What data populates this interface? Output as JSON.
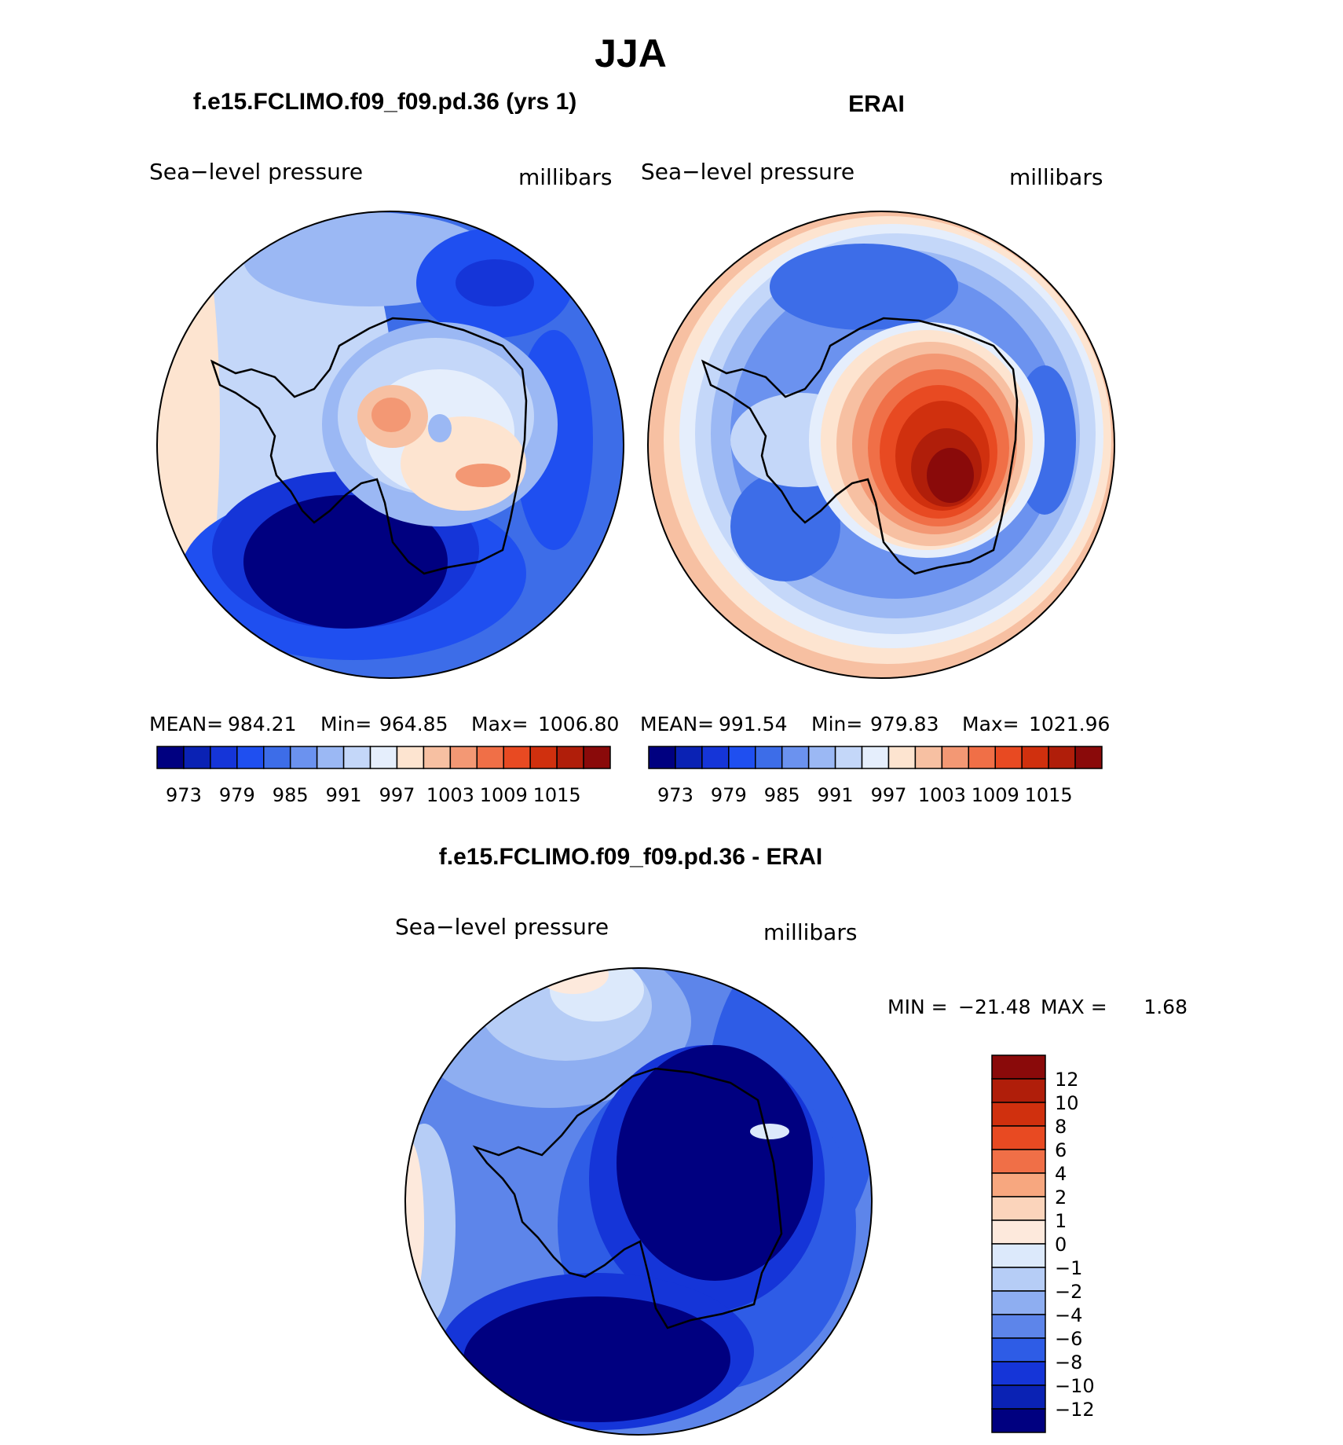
{
  "page": {
    "title": "JJA",
    "subtitle_left": "f.e15.FCLIMO.f09_f09.pd.36 (yrs 1)",
    "subtitle_right": "ERAI",
    "subtitle_diff": "f.e15.FCLIMO.f09_f09.pd.36 - ERAI"
  },
  "chart_data": [
    {
      "type": "heatmap",
      "projection": "south polar stereographic",
      "title": "f.e15.FCLIMO.f09_f09.pd.36 (yrs 1)",
      "variable_label": "Sea−level pressure",
      "units_label": "millibars",
      "stats": {
        "mean_label": "MEAN=",
        "mean": "984.21",
        "min_label": "Min=",
        "min": "964.85",
        "max_label": "Max=",
        "max": "1006.80"
      },
      "colorbar": {
        "orientation": "horizontal",
        "levels": [
          970,
          973,
          976,
          979,
          982,
          985,
          988,
          991,
          994,
          997,
          1000,
          1003,
          1006,
          1009,
          1012,
          1015,
          1018
        ],
        "tick_labels": [
          "973",
          "979",
          "985",
          "991",
          "997",
          "1003",
          "1009",
          "1015"
        ],
        "colors": [
          "#000080",
          "#0a22b4",
          "#1535d8",
          "#1f4ff0",
          "#3d6de8",
          "#6b92ef",
          "#9bb8f4",
          "#c4d7f9",
          "#e5eefc",
          "#fde4d0",
          "#f7c0a2",
          "#f39874",
          "#f06f47",
          "#e84a22",
          "#d0300e",
          "#b01e0a",
          "#8a0a0a"
        ]
      },
      "field_description": "Low pressure (970-976 mb) over Amundsen-Bellingshausen Sea; high pressure (994-1006 mb) over East Antarctic plateau"
    },
    {
      "type": "heatmap",
      "projection": "south polar stereographic",
      "title": "ERAI",
      "variable_label": "Sea−level pressure",
      "units_label": "millibars",
      "stats": {
        "mean_label": "MEAN=",
        "mean": "991.54",
        "min_label": "Min=",
        "min": "979.83",
        "max_label": "Max=",
        "max": "1021.96"
      },
      "colorbar": {
        "orientation": "horizontal",
        "levels": [
          970,
          973,
          976,
          979,
          982,
          985,
          988,
          991,
          994,
          997,
          1000,
          1003,
          1006,
          1009,
          1012,
          1015,
          1018
        ],
        "tick_labels": [
          "973",
          "979",
          "985",
          "991",
          "997",
          "1003",
          "1009",
          "1015"
        ],
        "colors": [
          "#000080",
          "#0a22b4",
          "#1535d8",
          "#1f4ff0",
          "#3d6de8",
          "#6b92ef",
          "#9bb8f4",
          "#c4d7f9",
          "#e5eefc",
          "#fde4d0",
          "#f7c0a2",
          "#f39874",
          "#f06f47",
          "#e84a22",
          "#d0300e",
          "#b01e0a",
          "#8a0a0a"
        ]
      },
      "field_description": "Strong high (1015-1022 mb) over East Antarctica; circumpolar trough 982-988 mb"
    },
    {
      "type": "heatmap",
      "projection": "south polar stereographic",
      "title": "f.e15.FCLIMO.f09_f09.pd.36 - ERAI",
      "variable_label": "Sea−level pressure",
      "units_label": "millibars",
      "stats": {
        "min_label": "MIN =",
        "min": "−21.48",
        "max_label": "MAX =",
        "max": "1.68"
      },
      "colorbar": {
        "orientation": "vertical",
        "tick_labels": [
          "12",
          "10",
          "8",
          "6",
          "4",
          "2",
          "1",
          "0",
          "−1",
          "−2",
          "−4",
          "−6",
          "−8",
          "−10",
          "−12"
        ],
        "colors": [
          "#8a0a0a",
          "#b01e0a",
          "#d0300e",
          "#e84a22",
          "#f06f47",
          "#f7a77f",
          "#fbd4bb",
          "#fde9dc",
          "#dce9fb",
          "#b6cdf6",
          "#8eaef1",
          "#5d85ea",
          "#2e5ce6",
          "#1535d8",
          "#0a22b4",
          "#000080"
        ]
      },
      "field_description": "Large negative bias (< −12 mb) over East Antarctica and Amundsen Sea; weak positive near Atlantic sector"
    }
  ]
}
